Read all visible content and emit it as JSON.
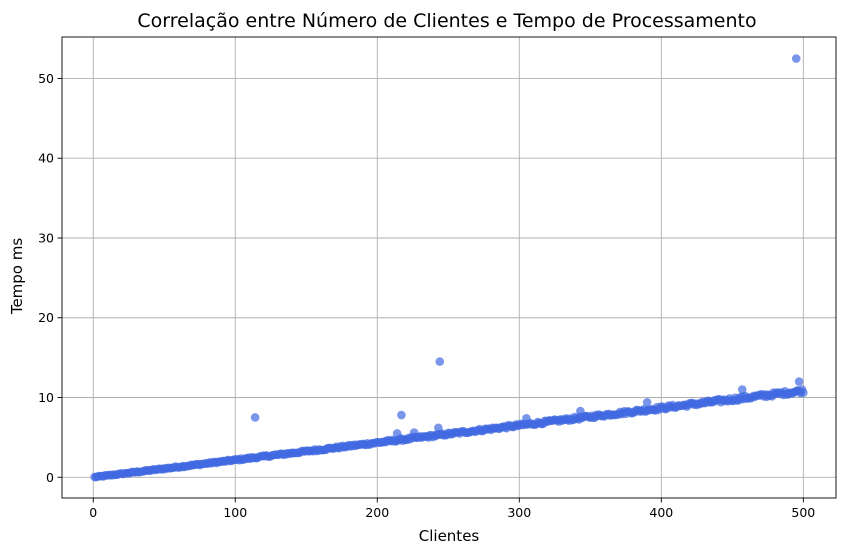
{
  "chart_data": {
    "type": "scatter",
    "title": "Correlação entre Número de Clientes e Tempo de Processamento",
    "xlabel": "Clientes",
    "ylabel": "Tempo ms",
    "xlim": [
      -22,
      523
    ],
    "ylim": [
      -2.6,
      55.2
    ],
    "xticks": [
      0,
      100,
      200,
      300,
      400,
      500
    ],
    "yticks": [
      0,
      10,
      20,
      30,
      40,
      50
    ],
    "grid": true,
    "marker_color": "#4169e1",
    "marker_opacity": 0.7,
    "trend": {
      "slope": 0.0217,
      "intercept": 0.0,
      "noise": 0.18
    },
    "x_range": [
      1,
      500
    ],
    "n_points": 500,
    "outliers": [
      {
        "x": 114,
        "y": 7.5
      },
      {
        "x": 217,
        "y": 7.8
      },
      {
        "x": 244,
        "y": 14.5
      },
      {
        "x": 495,
        "y": 52.5
      },
      {
        "x": 214,
        "y": 5.5
      },
      {
        "x": 226,
        "y": 5.6
      },
      {
        "x": 243,
        "y": 6.2
      },
      {
        "x": 305,
        "y": 7.4
      },
      {
        "x": 343,
        "y": 8.3
      },
      {
        "x": 390,
        "y": 9.4
      },
      {
        "x": 457,
        "y": 11.0
      },
      {
        "x": 497,
        "y": 12.0
      }
    ]
  }
}
